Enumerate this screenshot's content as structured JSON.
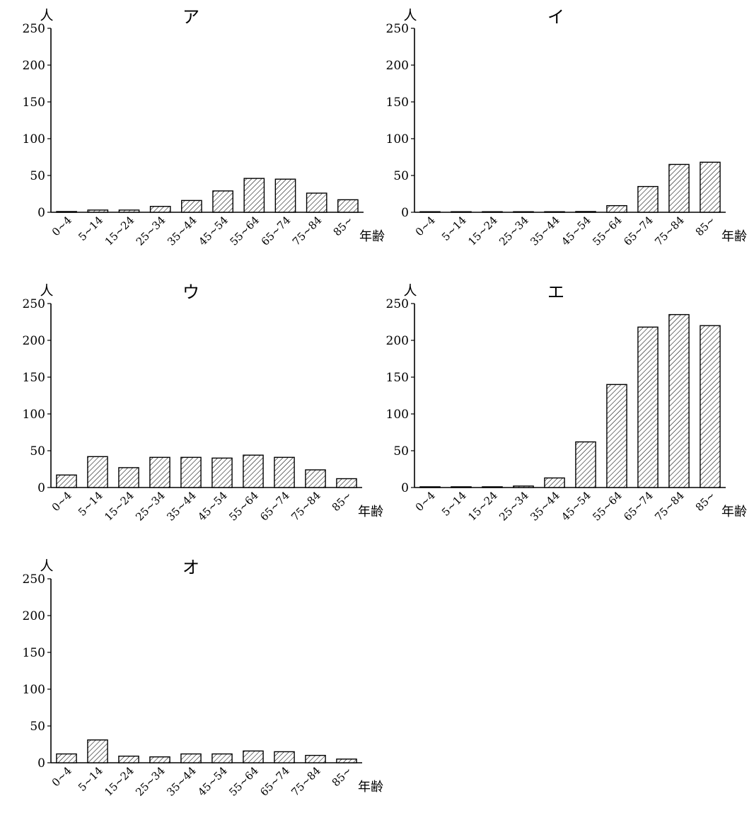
{
  "chart_data": [
    {
      "type": "bar",
      "title": "ア",
      "ylabel": "人",
      "xlabel": "年齢",
      "ylim": [
        0,
        250
      ],
      "yticks": [
        "0",
        "50",
        "100",
        "150",
        "200",
        "250"
      ],
      "categories": [
        "0~4",
        "5~14",
        "15~24",
        "25~34",
        "35~44",
        "45~54",
        "55~64",
        "65~74",
        "75~84",
        "85~"
      ],
      "values": [
        1,
        3,
        3,
        8,
        16,
        29,
        46,
        45,
        26,
        17
      ],
      "grid": false,
      "bar_fill": "hatched"
    },
    {
      "type": "bar",
      "title": "イ",
      "ylabel": "人",
      "xlabel": "年齢",
      "ylim": [
        0,
        250
      ],
      "yticks": [
        "0",
        "50",
        "100",
        "150",
        "200",
        "250"
      ],
      "categories": [
        "0~4",
        "5~14",
        "15~24",
        "25~34",
        "35~44",
        "45~54",
        "55~64",
        "65~74",
        "75~84",
        "85~"
      ],
      "values": [
        0,
        0,
        0,
        0,
        0,
        1,
        9,
        35,
        65,
        68
      ],
      "grid": false,
      "bar_fill": "hatched"
    },
    {
      "type": "bar",
      "title": "ウ",
      "ylabel": "人",
      "xlabel": "年齢",
      "ylim": [
        0,
        250
      ],
      "yticks": [
        "0",
        "50",
        "100",
        "150",
        "200",
        "250"
      ],
      "categories": [
        "0~4",
        "5~14",
        "15~24",
        "25~34",
        "35~44",
        "45~54",
        "55~64",
        "65~74",
        "75~84",
        "85~"
      ],
      "values": [
        17,
        42,
        27,
        41,
        41,
        40,
        44,
        41,
        24,
        12
      ],
      "grid": false,
      "bar_fill": "hatched"
    },
    {
      "type": "bar",
      "title": "エ",
      "ylabel": "人",
      "xlabel": "年齢",
      "ylim": [
        0,
        250
      ],
      "yticks": [
        "0",
        "50",
        "100",
        "150",
        "200",
        "250"
      ],
      "categories": [
        "0~4",
        "5~14",
        "15~24",
        "25~34",
        "35~44",
        "45~54",
        "55~64",
        "65~74",
        "75~84",
        "85~"
      ],
      "values": [
        1,
        1,
        1,
        2,
        13,
        62,
        140,
        218,
        235,
        220
      ],
      "grid": false,
      "bar_fill": "hatched"
    },
    {
      "type": "bar",
      "title": "オ",
      "ylabel": "人",
      "xlabel": "年齢",
      "ylim": [
        0,
        250
      ],
      "yticks": [
        "0",
        "50",
        "100",
        "150",
        "200",
        "250"
      ],
      "categories": [
        "0~4",
        "5~14",
        "15~24",
        "25~34",
        "35~44",
        "45~54",
        "55~64",
        "65~74",
        "75~84",
        "85~"
      ],
      "values": [
        12,
        31,
        9,
        8,
        12,
        12,
        16,
        15,
        10,
        5
      ],
      "grid": false,
      "bar_fill": "hatched"
    }
  ]
}
